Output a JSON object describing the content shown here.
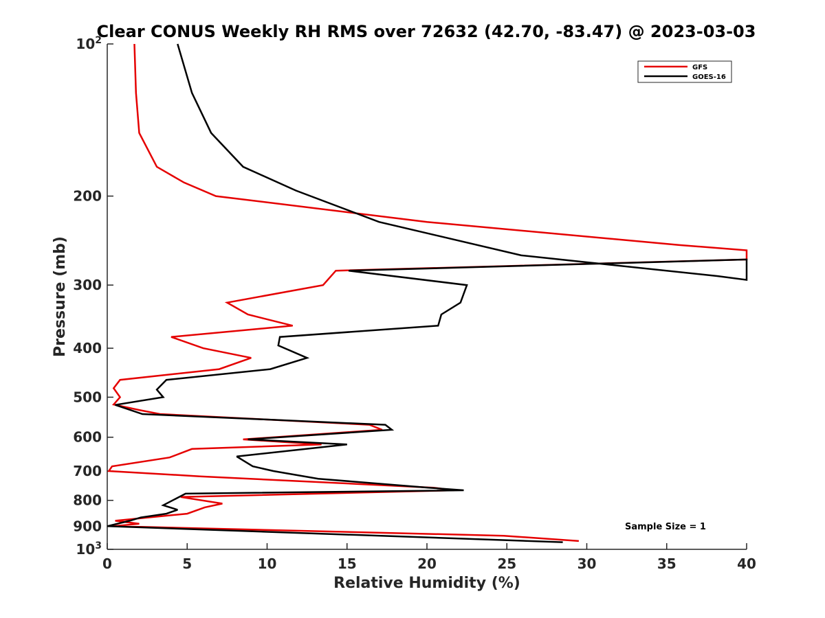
{
  "chart_data": {
    "type": "line",
    "title": "Clear CONUS Weekly RH RMS over 72632 (42.70, -83.47) @ 2023-03-03",
    "xlabel": "Relative Humidity (%)",
    "ylabel": "Pressure (mb)",
    "xlim": [
      0,
      40
    ],
    "ylim": [
      100,
      1000
    ],
    "yscale": "log",
    "y_reversed": true,
    "x_ticks": [
      "0",
      "5",
      "10",
      "15",
      "20",
      "25",
      "30",
      "35",
      "40"
    ],
    "y_ticks": [
      {
        "value": 100,
        "base": "10",
        "exp": "2"
      },
      {
        "value": 200,
        "label": "200"
      },
      {
        "value": 300,
        "label": "300"
      },
      {
        "value": 400,
        "label": "400"
      },
      {
        "value": 500,
        "label": "500"
      },
      {
        "value": 600,
        "label": "600"
      },
      {
        "value": 700,
        "label": "700"
      },
      {
        "value": 800,
        "label": "800"
      },
      {
        "value": 900,
        "label": "900"
      },
      {
        "value": 1000,
        "base": "10",
        "exp": "3"
      }
    ],
    "grid": false,
    "legend_position": "top-right",
    "annotation": "Sample Size = 1",
    "series": [
      {
        "name": "GFS",
        "color": "#e50000",
        "points": [
          [
            1.7,
            100
          ],
          [
            1.8,
            125
          ],
          [
            2.0,
            150
          ],
          [
            3.1,
            175
          ],
          [
            4.8,
            188
          ],
          [
            6.8,
            200
          ],
          [
            20.0,
            225
          ],
          [
            35.8,
            250
          ],
          [
            40.0,
            256
          ],
          [
            40.0,
            267
          ],
          [
            14.3,
            281
          ],
          [
            13.5,
            300
          ],
          [
            7.5,
            325
          ],
          [
            8.8,
            343
          ],
          [
            11.6,
            361
          ],
          [
            4.0,
            380
          ],
          [
            6.0,
            400
          ],
          [
            9.0,
            418
          ],
          [
            7.0,
            440
          ],
          [
            0.8,
            462
          ],
          [
            0.4,
            480
          ],
          [
            0.8,
            500
          ],
          [
            0.4,
            517
          ],
          [
            2.0,
            530
          ],
          [
            3.3,
            540
          ],
          [
            16.4,
            567
          ],
          [
            17.2,
            580
          ],
          [
            8.5,
            606
          ],
          [
            13.4,
            620
          ],
          [
            5.3,
            633
          ],
          [
            3.9,
            658
          ],
          [
            0.3,
            685
          ],
          [
            0.1,
            700
          ],
          [
            5.8,
            717
          ],
          [
            20.4,
            755
          ],
          [
            21.7,
            764
          ],
          [
            4.6,
            788
          ],
          [
            7.2,
            812
          ],
          [
            6.1,
            826
          ],
          [
            5.0,
            850
          ],
          [
            0.5,
            878
          ],
          [
            2.0,
            890
          ],
          [
            0.4,
            900
          ],
          [
            24.8,
            940
          ],
          [
            29.5,
            963
          ]
        ]
      },
      {
        "name": "GOES-16",
        "color": "#000000",
        "points": [
          [
            4.4,
            100
          ],
          [
            5.3,
            125
          ],
          [
            6.5,
            150
          ],
          [
            8.5,
            175
          ],
          [
            11.8,
            195
          ],
          [
            17.0,
            225
          ],
          [
            25.9,
            262
          ],
          [
            38.2,
            288
          ],
          [
            40.0,
            293
          ],
          [
            40.0,
            267
          ],
          [
            15.1,
            281
          ],
          [
            22.5,
            300
          ],
          [
            22.1,
            325
          ],
          [
            20.9,
            343
          ],
          [
            20.7,
            361
          ],
          [
            10.8,
            380
          ],
          [
            10.7,
            395
          ],
          [
            12.5,
            418
          ],
          [
            10.2,
            440
          ],
          [
            3.7,
            462
          ],
          [
            3.1,
            483
          ],
          [
            3.5,
            500
          ],
          [
            0.5,
            518
          ],
          [
            2.2,
            540
          ],
          [
            17.4,
            567
          ],
          [
            17.8,
            580
          ],
          [
            8.8,
            606
          ],
          [
            15.0,
            620
          ],
          [
            8.1,
            655
          ],
          [
            9.1,
            685
          ],
          [
            10.4,
            700
          ],
          [
            13.2,
            725
          ],
          [
            20.1,
            755
          ],
          [
            22.3,
            764
          ],
          [
            4.9,
            776
          ],
          [
            3.5,
            818
          ],
          [
            4.4,
            835
          ],
          [
            3.7,
            850
          ],
          [
            2.1,
            865
          ],
          [
            1.4,
            878
          ],
          [
            0.0,
            900
          ],
          [
            28.5,
            968
          ]
        ]
      }
    ]
  }
}
